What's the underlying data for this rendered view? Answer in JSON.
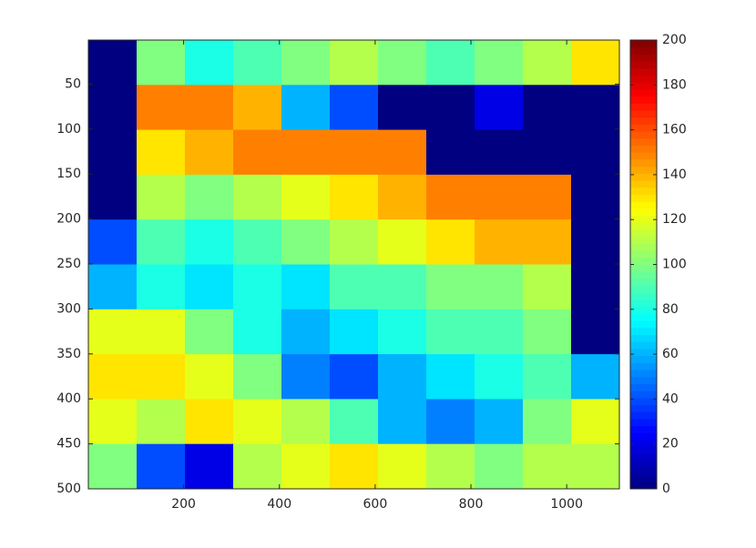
{
  "chart_data": {
    "type": "heatmap",
    "colormap": "jet",
    "xlim": [
      1,
      1110
    ],
    "ylim": [
      1,
      500
    ],
    "y_reversed": true,
    "xticks": [
      200,
      400,
      600,
      800,
      1000
    ],
    "yticks": [
      50,
      100,
      150,
      200,
      250,
      300,
      350,
      400,
      450,
      500
    ],
    "z": [
      [
        0,
        100,
        80,
        90,
        100,
        110,
        100,
        90,
        100,
        110,
        130
      ],
      [
        0,
        150,
        150,
        140,
        60,
        40,
        0,
        0,
        20,
        0,
        0
      ],
      [
        0,
        130,
        140,
        150,
        150,
        150,
        150,
        0,
        0,
        0,
        0
      ],
      [
        0,
        110,
        100,
        110,
        120,
        130,
        140,
        150,
        150,
        150,
        0
      ],
      [
        40,
        90,
        80,
        90,
        100,
        110,
        120,
        130,
        140,
        140,
        0
      ],
      [
        60,
        80,
        70,
        80,
        70,
        90,
        90,
        100,
        100,
        110,
        0
      ],
      [
        120,
        120,
        100,
        80,
        60,
        70,
        80,
        90,
        90,
        100,
        0
      ],
      [
        130,
        130,
        120,
        100,
        50,
        40,
        60,
        70,
        80,
        90,
        60
      ],
      [
        120,
        110,
        130,
        120,
        110,
        90,
        60,
        50,
        60,
        100,
        120
      ],
      [
        100,
        40,
        20,
        110,
        120,
        130,
        120,
        110,
        100,
        110,
        110
      ]
    ],
    "colorbar": {
      "lim": [
        0,
        200
      ],
      "ticks": [
        0,
        20,
        40,
        60,
        80,
        100,
        120,
        140,
        160,
        180,
        200
      ]
    }
  }
}
